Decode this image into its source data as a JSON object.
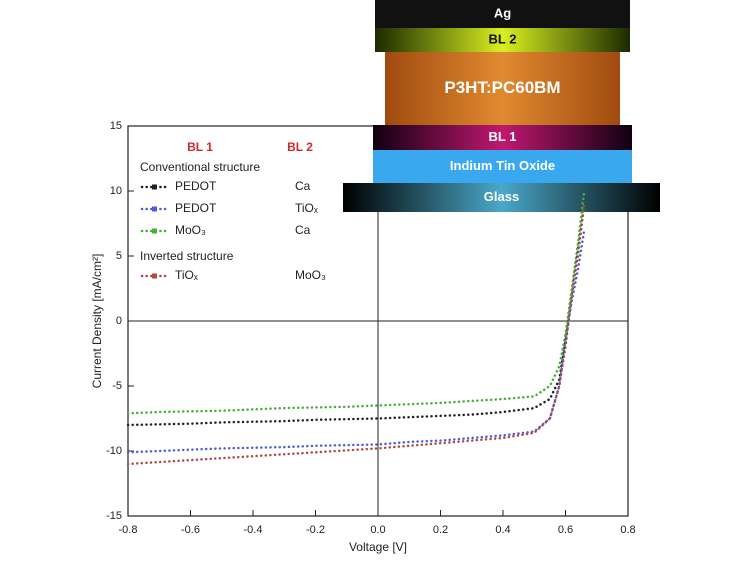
{
  "chart_data": {
    "type": "line",
    "x_label": "Voltage [V]",
    "y_label": "Current Density [mA/cm²]",
    "x": [
      -0.8,
      -0.7,
      -0.6,
      -0.5,
      -0.4,
      -0.3,
      -0.2,
      -0.1,
      0,
      0.1,
      0.2,
      0.3,
      0.4,
      0.5,
      0.55,
      0.58,
      0.6,
      0.62,
      0.64,
      0.66
    ],
    "series": [
      {
        "name": "PEDOT",
        "bl2": "Ca",
        "color": "#222222",
        "values": [
          -8.0,
          -7.95,
          -7.9,
          -7.8,
          -7.75,
          -7.7,
          -7.6,
          -7.55,
          -7.5,
          -7.4,
          -7.3,
          -7.2,
          -7.0,
          -6.7,
          -6.0,
          -4.5,
          -1.5,
          2,
          5.5,
          9
        ]
      },
      {
        "name": "PEDOT",
        "bl2": "TiOₓ",
        "color": "#4a5ee0",
        "values": [
          -10.1,
          -10.0,
          -9.9,
          -9.8,
          -9.75,
          -9.7,
          -9.6,
          -9.55,
          -9.5,
          -9.3,
          -9.2,
          -9.0,
          -8.8,
          -8.5,
          -7.5,
          -5,
          -1.5,
          1.5,
          4,
          7
        ]
      },
      {
        "name": "MoO₃",
        "bl2": "Ca",
        "color": "#45b035",
        "values": [
          -7.1,
          -7.0,
          -6.95,
          -6.9,
          -6.8,
          -6.7,
          -6.65,
          -6.6,
          -6.5,
          -6.4,
          -6.3,
          -6.15,
          -6.0,
          -5.8,
          -5.0,
          -3.5,
          -1,
          2.5,
          6,
          10
        ]
      },
      {
        "name": "TiOₓ",
        "bl2": "MoO₃",
        "color": "#b04a44",
        "values": [
          -11.0,
          -10.85,
          -10.7,
          -10.55,
          -10.4,
          -10.25,
          -10.1,
          -9.95,
          -9.8,
          -9.6,
          -9.4,
          -9.2,
          -9.0,
          -8.6,
          -7.5,
          -5,
          -2,
          2,
          5,
          9
        ]
      }
    ],
    "legend_headers": [
      "BL 1",
      "BL 2"
    ],
    "legend_groups": [
      "Conventional structure",
      "Inverted structure"
    ],
    "xlim": [
      -0.8,
      0.8
    ],
    "xticks": [
      -0.8,
      -0.6,
      -0.4,
      -0.2,
      {
        "value": 0,
        "label": "0.0"
      },
      0.2,
      0.4,
      0.6,
      0.8
    ],
    "ylim": [
      -15,
      15
    ],
    "yticks": [
      -15,
      -10,
      -5,
      0,
      5,
      10,
      15
    ]
  },
  "device_stack": {
    "layers": [
      "Ag",
      "BL 2",
      "P3HT:PC60BM",
      "BL 1",
      "Indium Tin Oxide",
      "Glass"
    ]
  }
}
